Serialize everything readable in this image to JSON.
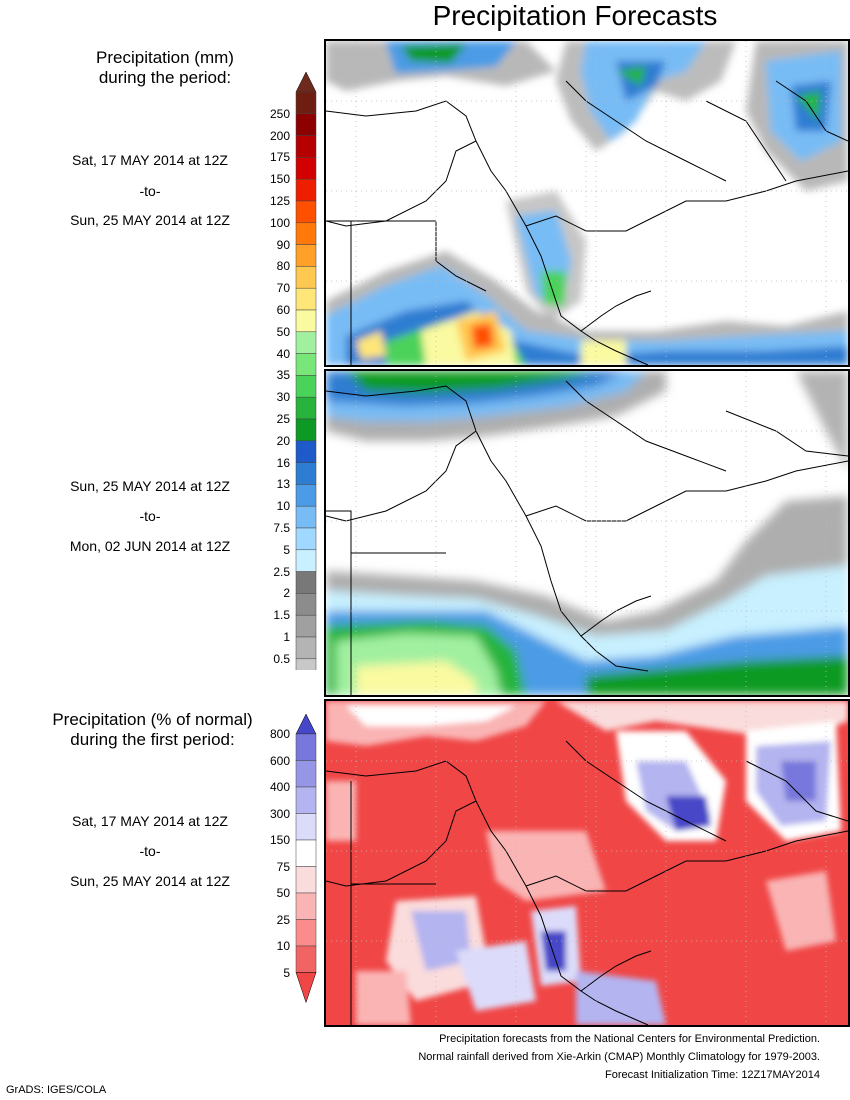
{
  "title": "Precipitation Forecasts",
  "legend_amount": {
    "heading_line1": "Precipitation (mm)",
    "heading_line2": "during the period:",
    "levels": [
      "0.5",
      "1",
      "1.5",
      "2",
      "2.5",
      "5",
      "7.5",
      "10",
      "13",
      "16",
      "20",
      "25",
      "30",
      "35",
      "40",
      "50",
      "60",
      "70",
      "80",
      "90",
      "100",
      "125",
      "150",
      "175",
      "200",
      "250"
    ],
    "colors": [
      "#c8c8c8",
      "#b4b4b4",
      "#a0a0a0",
      "#8c8c8c",
      "#787878",
      "#c8f0ff",
      "#a0d8ff",
      "#78bcf5",
      "#4b9be6",
      "#2d7dd2",
      "#1e5ac8",
      "#0c9a24",
      "#28b43c",
      "#4bd25a",
      "#78e678",
      "#a0f0a0",
      "#fafaa0",
      "#ffe678",
      "#ffc850",
      "#ffa028",
      "#ff780a",
      "#ff5000",
      "#f01e00",
      "#d20000",
      "#b40000",
      "#8c0000",
      "#6e1e10"
    ],
    "bottom_arrow_color": "#ffffff",
    "top_arrow_color": "#6e2a1c"
  },
  "legend_percent": {
    "heading_line1": "Precipitation (% of normal)",
    "heading_line2": "during the first period:",
    "levels": [
      "5",
      "10",
      "25",
      "50",
      "75",
      "150",
      "300",
      "400",
      "600",
      "800"
    ],
    "colors": [
      "#f04646",
      "#f06464",
      "#fa8c8c",
      "#fab4b4",
      "#fadcdc",
      "#ffffff",
      "#dcdcfa",
      "#b4b4f0",
      "#9696e6",
      "#7878dc",
      "#4646c8"
    ]
  },
  "periods": [
    {
      "start": "Sat, 17 MAY 2014 at 12Z",
      "sep": "-to-",
      "end": "Sun, 25 MAY 2014 at 12Z"
    },
    {
      "start": "Sun, 25 MAY 2014 at 12Z",
      "sep": "-to-",
      "end": "Mon, 02 JUN 2014 at 12Z"
    },
    {
      "start": "Sat, 17 MAY 2014 at 12Z",
      "sep": "-to-",
      "end": "Sun, 25 MAY 2014 at 12Z"
    }
  ],
  "footer": {
    "line1": "Precipitation forecasts from the National Centers for Environmental Prediction.",
    "line2": "Normal rainfall derived from Xie-Arkin (CMAP) Monthly Climatology for 1979-2003.",
    "line3": "Forecast Initialization Time: 12Z17MAY2014"
  },
  "credit": "GrADS: IGES/COLA",
  "colors": {
    "border": "#000000",
    "coast": "#000000",
    "grid_dots": "#bbbbbb"
  }
}
